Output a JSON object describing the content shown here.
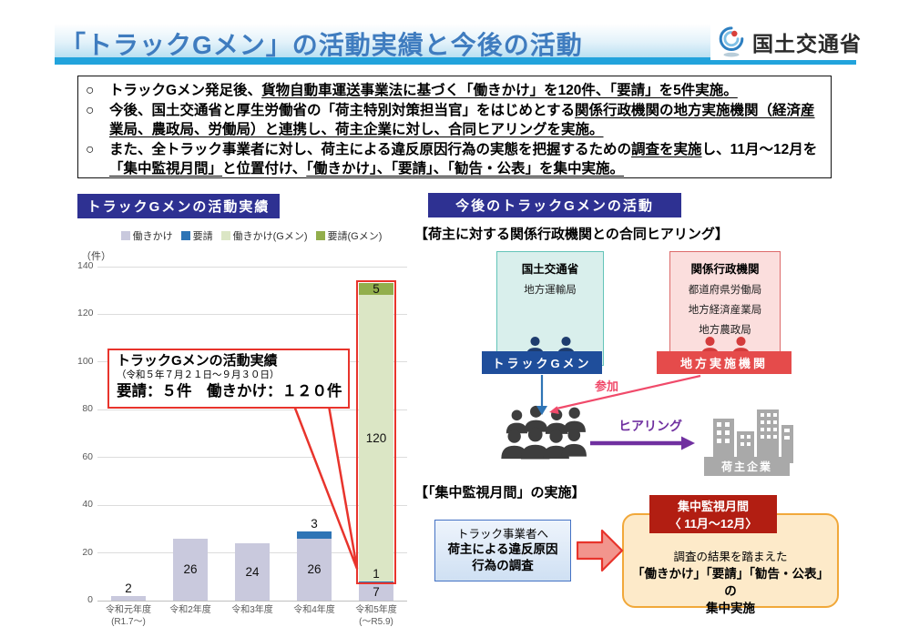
{
  "header": {
    "title": "「トラックGメン」の活動実績と今後の活動",
    "org_name": "国土交通省"
  },
  "summary": {
    "marker": "○",
    "bullets": [
      {
        "segments": [
          {
            "t": "トラックGメン発足後、"
          },
          {
            "t": "貨物自動車運送事業法に基づく「働きかけ」を120件、「要請」を5件実施。",
            "u": true
          }
        ]
      },
      {
        "segments": [
          {
            "t": "今後、国土交通省と厚生労働省の「荷主特別対策担当官」をはじめとする"
          },
          {
            "t": "関係行政機関の地方実施機関（経済産業局、農政局、労働局）と連携し、荷主企業に対し、合同ヒアリングを実施。",
            "u": true
          }
        ]
      },
      {
        "segments": [
          {
            "t": "また、全トラック事業者に対し、荷主による違反原因行為の実態を把握するための"
          },
          {
            "t": "調査を実施",
            "u": true
          },
          {
            "t": "し、11月～12月を"
          },
          {
            "t": "「集中監視月間」",
            "u": true
          },
          {
            "t": "と位置付け、"
          },
          {
            "t": "「働きかけ」、「要請」、「勧告・公表」を集中実施。",
            "u": true
          }
        ]
      }
    ]
  },
  "left_panel": {
    "title": "トラックGメンの活動実績"
  },
  "chart_data": {
    "type": "bar",
    "stacked": true,
    "title": "トラックGメンの活動実績",
    "unit_label": "（件）",
    "ylim": [
      0,
      140
    ],
    "ytick_step": 20,
    "grid": true,
    "legend_position": "top",
    "categories": [
      "令和元年度\n(R1.7～)",
      "令和2年度",
      "令和3年度",
      "令和4年度",
      "令和5年度\n(～R5.9)"
    ],
    "series": [
      {
        "name": "働きかけ",
        "color": "#c9c9dd",
        "values": [
          2,
          26,
          24,
          26,
          7
        ]
      },
      {
        "name": "要請",
        "color": "#2e74b5",
        "values": [
          0,
          0,
          0,
          3,
          1
        ]
      },
      {
        "name": "働きかけ(Gメン)",
        "color": "#dbe6c5",
        "values": [
          0,
          0,
          0,
          0,
          120
        ]
      },
      {
        "name": "要請(Gメン)",
        "color": "#92ae4c",
        "values": [
          0,
          0,
          0,
          0,
          5
        ]
      }
    ],
    "highlight": {
      "category_index": 4,
      "from_value": 8,
      "to_value": 133,
      "color": "#e8342c"
    },
    "callout": {
      "title": "トラックGメンの活動実績",
      "subtitle": "（令和５年７月２１日～９月３０日）",
      "body": "要請：５件　働きかけ：１２０件"
    }
  },
  "right_panel": {
    "title": "今後のトラックGメンの活動",
    "hearing": {
      "heading": "【荷主に対する関係行政機関との合同ヒアリング】",
      "mlit_box": {
        "title": "国土交通省",
        "items": [
          "地方運輸局"
        ]
      },
      "agency_box": {
        "title": "関係行政機関",
        "items": [
          "都道府県労働局",
          "地方経済産業局",
          "地方農政局"
        ]
      },
      "gmen_label": "トラックGメン",
      "local_label": "地方実施機関",
      "participate_label": "参加",
      "hearing_label": "ヒアリング",
      "shipper_label": "荷主企業"
    },
    "monitoring": {
      "heading": "【「集中監視月間」の実施】",
      "survey_box": {
        "line1": "トラック事業者へ",
        "line2": "荷主による違反原因",
        "line3": "行為の調査"
      },
      "period_box": {
        "line1": "集中監視月間",
        "line2": "〈 11月～12月〉"
      },
      "result_box": {
        "line1": "調査の結果を踏まえた",
        "line2": "「働きかけ」「要請」「勧告・公表」の",
        "line3": "集中実施"
      }
    }
  },
  "colors": {
    "navy_header": "#2e3192",
    "title_blue": "#3f7cbf",
    "cyan_bar": "#22a3dc",
    "accent_red": "#e8342c",
    "teal_bg": "#d9efec",
    "teal_border": "#63c4b9",
    "pink_bg": "#fbdedd",
    "pink_border": "#dd6a6a",
    "gmen_bar": "#1f4e9b",
    "local_bar": "#e54b4b",
    "participate_red": "#f04a6a",
    "hearing_purple": "#7030a0",
    "building_gray": "#a9a9a9",
    "darkred_box": "#b21e12",
    "orange_bg": "#fdeac9",
    "orange_border": "#f1a83a",
    "survey_border": "#4472c4",
    "survey_bg1": "#eef4fc",
    "survey_bg2": "#cfe0f3",
    "flow_arrow_fill": "#f2958d",
    "icon_navy": "#1e3c6e",
    "icon_red": "#d43c3c",
    "crowd_dark": "#3d3d3d"
  }
}
